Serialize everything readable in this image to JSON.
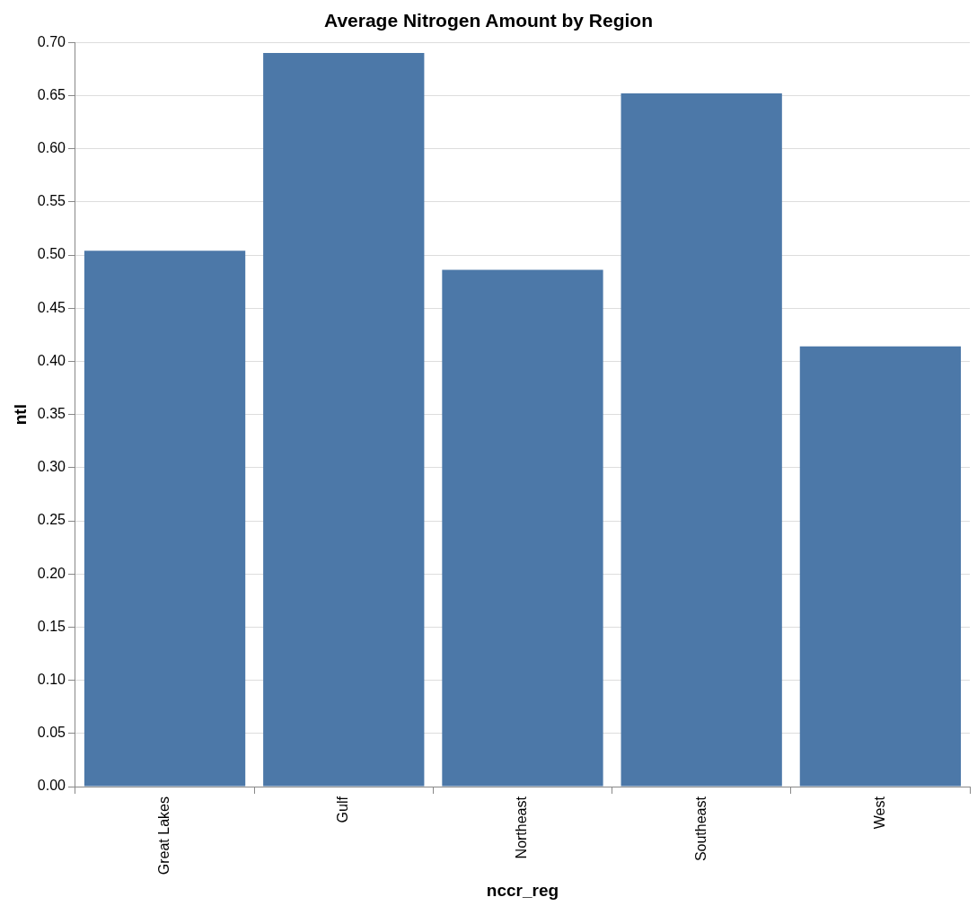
{
  "chart_data": {
    "type": "bar",
    "title": "Average Nitrogen Amount by Region",
    "xlabel": "nccr_reg",
    "ylabel": "ntl",
    "categories": [
      "Great Lakes",
      "Gulf",
      "Northeast",
      "Southeast",
      "West"
    ],
    "values": [
      0.504,
      0.69,
      0.486,
      0.652,
      0.414
    ],
    "color": "#4c78a8",
    "ylim": [
      0,
      0.7
    ],
    "yticks": [
      {
        "value": 0,
        "label": "0.00"
      },
      {
        "value": 0.05,
        "label": "0.05"
      },
      {
        "value": 0.1,
        "label": "0.10"
      },
      {
        "value": 0.15,
        "label": "0.15"
      },
      {
        "value": 0.2,
        "label": "0.20"
      },
      {
        "value": 0.25,
        "label": "0.25"
      },
      {
        "value": 0.3,
        "label": "0.30"
      },
      {
        "value": 0.35,
        "label": "0.35"
      },
      {
        "value": 0.4,
        "label": "0.40"
      },
      {
        "value": 0.45,
        "label": "0.45"
      },
      {
        "value": 0.5,
        "label": "0.50"
      },
      {
        "value": 0.55,
        "label": "0.55"
      },
      {
        "value": 0.6,
        "label": "0.60"
      },
      {
        "value": 0.65,
        "label": "0.65"
      },
      {
        "value": 0.7,
        "label": "0.70"
      }
    ],
    "grid": "y",
    "legend": false
  }
}
